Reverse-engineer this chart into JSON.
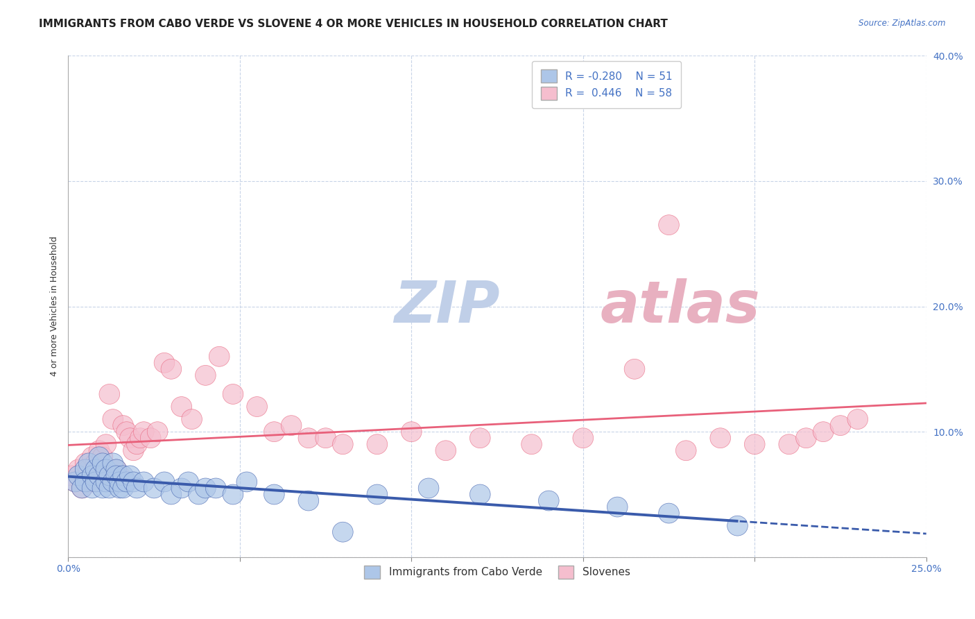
{
  "title": "IMMIGRANTS FROM CABO VERDE VS SLOVENE 4 OR MORE VEHICLES IN HOUSEHOLD CORRELATION CHART",
  "source": "Source: ZipAtlas.com",
  "ylabel": "4 or more Vehicles in Household",
  "xlim": [
    0.0,
    0.25
  ],
  "ylim": [
    0.0,
    0.4
  ],
  "xticks": [
    0.0,
    0.05,
    0.1,
    0.15,
    0.2,
    0.25
  ],
  "yticks": [
    0.0,
    0.1,
    0.2,
    0.3,
    0.4
  ],
  "xticklabels": [
    "0.0%",
    "",
    "",
    "",
    "",
    "25.0%"
  ],
  "yticklabels": [
    "",
    "10.0%",
    "20.0%",
    "30.0%",
    "40.0%"
  ],
  "blue_R": -0.28,
  "blue_N": 51,
  "pink_R": 0.446,
  "pink_N": 58,
  "blue_color": "#adc6e8",
  "pink_color": "#f5bece",
  "blue_line_color": "#3a5bab",
  "pink_line_color": "#e8607a",
  "legend_label_blue": "Immigrants from Cabo Verde",
  "legend_label_pink": "Slovenes",
  "watermark": "ZIPatlas",
  "watermark_blue": "#c5d8ee",
  "watermark_pink": "#e8a0b0",
  "background_color": "#ffffff",
  "blue_scatter_x": [
    0.002,
    0.003,
    0.004,
    0.005,
    0.005,
    0.006,
    0.007,
    0.007,
    0.008,
    0.008,
    0.009,
    0.009,
    0.01,
    0.01,
    0.011,
    0.011,
    0.012,
    0.012,
    0.013,
    0.013,
    0.014,
    0.014,
    0.015,
    0.015,
    0.016,
    0.016,
    0.017,
    0.018,
    0.019,
    0.02,
    0.022,
    0.025,
    0.028,
    0.03,
    0.033,
    0.035,
    0.038,
    0.04,
    0.043,
    0.048,
    0.052,
    0.06,
    0.07,
    0.08,
    0.09,
    0.105,
    0.12,
    0.14,
    0.16,
    0.175,
    0.195
  ],
  "blue_scatter_y": [
    0.06,
    0.065,
    0.055,
    0.07,
    0.06,
    0.075,
    0.065,
    0.055,
    0.07,
    0.06,
    0.08,
    0.065,
    0.055,
    0.075,
    0.06,
    0.07,
    0.055,
    0.065,
    0.075,
    0.06,
    0.07,
    0.065,
    0.055,
    0.06,
    0.065,
    0.055,
    0.06,
    0.065,
    0.06,
    0.055,
    0.06,
    0.055,
    0.06,
    0.05,
    0.055,
    0.06,
    0.05,
    0.055,
    0.055,
    0.05,
    0.06,
    0.05,
    0.045,
    0.02,
    0.05,
    0.055,
    0.05,
    0.045,
    0.04,
    0.035,
    0.025
  ],
  "pink_scatter_x": [
    0.001,
    0.002,
    0.003,
    0.004,
    0.005,
    0.006,
    0.006,
    0.007,
    0.007,
    0.008,
    0.008,
    0.009,
    0.009,
    0.01,
    0.01,
    0.011,
    0.012,
    0.013,
    0.014,
    0.015,
    0.016,
    0.017,
    0.018,
    0.019,
    0.02,
    0.021,
    0.022,
    0.024,
    0.026,
    0.028,
    0.03,
    0.033,
    0.036,
    0.04,
    0.044,
    0.048,
    0.055,
    0.06,
    0.065,
    0.07,
    0.075,
    0.08,
    0.09,
    0.1,
    0.11,
    0.12,
    0.135,
    0.15,
    0.165,
    0.18,
    0.19,
    0.2,
    0.175,
    0.21,
    0.215,
    0.22,
    0.225,
    0.23
  ],
  "pink_scatter_y": [
    0.065,
    0.06,
    0.07,
    0.055,
    0.075,
    0.06,
    0.07,
    0.08,
    0.06,
    0.065,
    0.075,
    0.085,
    0.065,
    0.07,
    0.08,
    0.09,
    0.13,
    0.11,
    0.07,
    0.065,
    0.105,
    0.1,
    0.095,
    0.085,
    0.09,
    0.095,
    0.1,
    0.095,
    0.1,
    0.155,
    0.15,
    0.12,
    0.11,
    0.145,
    0.16,
    0.13,
    0.12,
    0.1,
    0.105,
    0.095,
    0.095,
    0.09,
    0.09,
    0.1,
    0.085,
    0.095,
    0.09,
    0.095,
    0.15,
    0.085,
    0.095,
    0.09,
    0.265,
    0.09,
    0.095,
    0.1,
    0.105,
    0.11
  ],
  "title_fontsize": 11,
  "axis_label_fontsize": 9,
  "tick_fontsize": 10,
  "legend_fontsize": 11
}
